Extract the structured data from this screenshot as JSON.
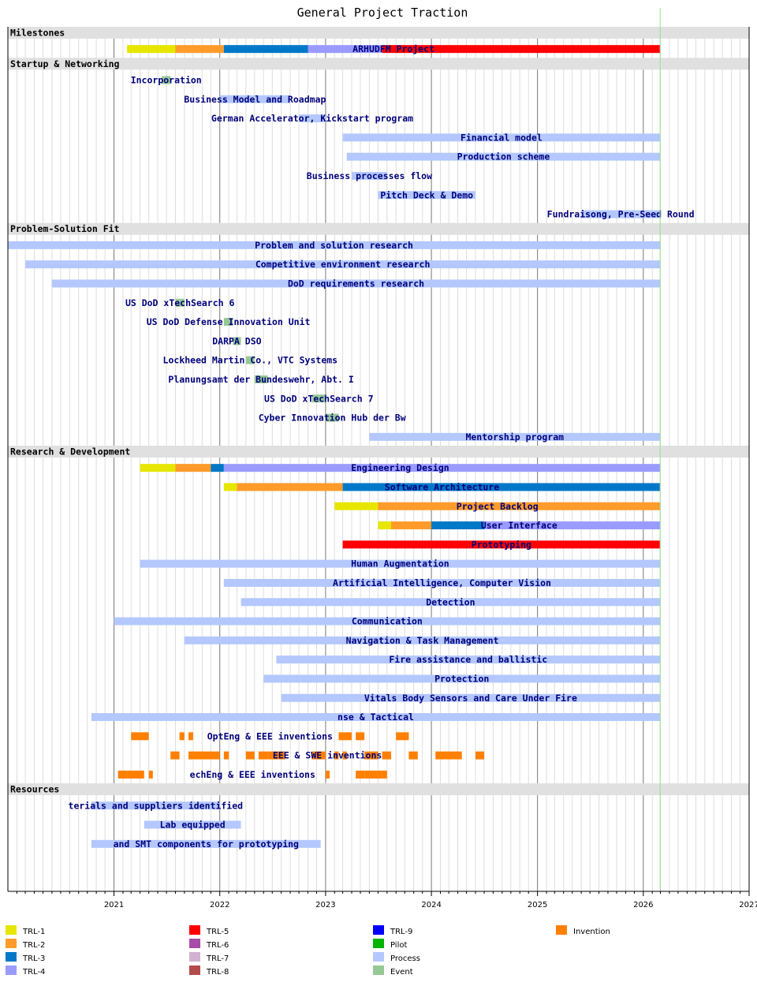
{
  "chart_data": {
    "type": "gantt",
    "title": "General Project Traction",
    "x_axis": {
      "range": [
        "2020-01-01",
        "2027-01-01"
      ],
      "ticks": [
        "2021",
        "2022",
        "2023",
        "2024",
        "2025",
        "2026",
        "2027"
      ],
      "minor_gridlines": "monthly",
      "today_marker": "2026-02-28"
    },
    "colors": {
      "TRL-1": "#e6e600",
      "TRL-2": "#ff9b2a",
      "TRL-3": "#0078c8",
      "TRL-4": "#9b9bff",
      "TRL-5": "#ff0000",
      "TRL-6": "#a64ca6",
      "TRL-7": "#d2b2d2",
      "TRL-8": "#b24c4c",
      "TRL-9": "#0000ff",
      "Pilot": "#00b400",
      "Process": "#b4c8ff",
      "Event": "#96c896",
      "Invention": "#ff8000"
    },
    "legend": [
      "TRL-1",
      "TRL-2",
      "TRL-3",
      "TRL-4",
      "TRL-5",
      "TRL-6",
      "TRL-7",
      "TRL-8",
      "TRL-9",
      "Pilot",
      "Process",
      "Event",
      "Invention"
    ],
    "sections": [
      {
        "name": "Milestones",
        "tasks": [
          {
            "label": "ARHUDFM Project",
            "bars": [
              {
                "start": "2021-02-15",
                "end": "2021-08-01",
                "cat": "TRL-1"
              },
              {
                "start": "2021-08-01",
                "end": "2022-01-15",
                "cat": "TRL-2"
              },
              {
                "start": "2022-01-15",
                "end": "2022-11-01",
                "cat": "TRL-3"
              },
              {
                "start": "2022-11-01",
                "end": "2023-07-15",
                "cat": "TRL-4"
              },
              {
                "start": "2023-07-15",
                "end": "2026-02-28",
                "cat": "TRL-5"
              }
            ]
          }
        ]
      },
      {
        "name": "Startup & Networking",
        "tasks": [
          {
            "label": "Incorporation",
            "bars": [
              {
                "start": "2021-06-15",
                "end": "2021-07-15",
                "cat": "Event"
              }
            ]
          },
          {
            "label": "Business Model and Roadmap",
            "bars": [
              {
                "start": "2022-01-01",
                "end": "2022-09-01",
                "cat": "Process"
              }
            ]
          },
          {
            "label": "German Accelerator, Kickstart program",
            "bars": [
              {
                "start": "2022-10-01",
                "end": "2023-01-01",
                "cat": "Process"
              }
            ]
          },
          {
            "label": "Financial model",
            "bars": [
              {
                "start": "2023-03-01",
                "end": "2026-02-28",
                "cat": "Process"
              }
            ]
          },
          {
            "label": "Production scheme",
            "bars": [
              {
                "start": "2023-03-15",
                "end": "2026-02-28",
                "cat": "Process"
              }
            ]
          },
          {
            "label": "Business processes flow",
            "bars": [
              {
                "start": "2023-04-01",
                "end": "2023-08-01",
                "cat": "Process"
              }
            ]
          },
          {
            "label": "Pitch Deck & Demo",
            "bars": [
              {
                "start": "2023-07-01",
                "end": "2024-06-01",
                "cat": "Process"
              }
            ]
          },
          {
            "label": "Fundraisong, Pre-Seed Round",
            "bars": [
              {
                "start": "2025-06-01",
                "end": "2026-02-28",
                "cat": "Process"
              }
            ]
          }
        ]
      },
      {
        "name": "Problem-Solution Fit",
        "tasks": [
          {
            "label": "Problem and solution research",
            "bars": [
              {
                "start": "2020-01-01",
                "end": "2026-02-28",
                "cat": "Process"
              }
            ]
          },
          {
            "label": "Competitive environment research",
            "bars": [
              {
                "start": "2020-03-01",
                "end": "2026-02-28",
                "cat": "Process"
              }
            ]
          },
          {
            "label": "DoD requirements research",
            "bars": [
              {
                "start": "2020-06-01",
                "end": "2026-02-28",
                "cat": "Process"
              }
            ]
          },
          {
            "label": "US DoD xTechSearch 6",
            "bars": [
              {
                "start": "2021-08-01",
                "end": "2021-09-01",
                "cat": "Event"
              }
            ]
          },
          {
            "label": "US DoD Defense Innovation Unit",
            "bars": [
              {
                "start": "2022-01-15",
                "end": "2022-02-15",
                "cat": "Event"
              }
            ]
          },
          {
            "label": "DARPA DSO",
            "bars": [
              {
                "start": "2022-02-15",
                "end": "2022-03-15",
                "cat": "Event"
              }
            ]
          },
          {
            "label": "Lockheed Martin Co., VTC Systems",
            "bars": [
              {
                "start": "2022-04-01",
                "end": "2022-05-01",
                "cat": "Event"
              }
            ]
          },
          {
            "label": "Planungsamt der Bundeswehr, Abt. I",
            "bars": [
              {
                "start": "2022-05-01",
                "end": "2022-06-15",
                "cat": "Event"
              }
            ]
          },
          {
            "label": "US DoD xTechSearch 7",
            "bars": [
              {
                "start": "2022-11-15",
                "end": "2023-01-01",
                "cat": "Event"
              }
            ]
          },
          {
            "label": "Cyber Innovation Hub der Bw",
            "bars": [
              {
                "start": "2023-01-01",
                "end": "2023-02-15",
                "cat": "Event"
              }
            ]
          },
          {
            "label": "Mentorship program",
            "bars": [
              {
                "start": "2023-06-01",
                "end": "2026-02-28",
                "cat": "Process"
              }
            ]
          }
        ]
      },
      {
        "name": "Research & Development",
        "tasks": [
          {
            "label": "Engineering Design",
            "bars": [
              {
                "start": "2021-04-01",
                "end": "2021-08-01",
                "cat": "TRL-1"
              },
              {
                "start": "2021-08-01",
                "end": "2021-12-01",
                "cat": "TRL-2"
              },
              {
                "start": "2021-12-01",
                "end": "2022-01-15",
                "cat": "TRL-3"
              },
              {
                "start": "2022-01-15",
                "end": "2026-02-28",
                "cat": "TRL-4"
              }
            ]
          },
          {
            "label": "Software Architecture",
            "bars": [
              {
                "start": "2022-01-15",
                "end": "2022-03-01",
                "cat": "TRL-1"
              },
              {
                "start": "2022-03-01",
                "end": "2023-03-01",
                "cat": "TRL-2"
              },
              {
                "start": "2023-03-01",
                "end": "2026-02-28",
                "cat": "TRL-3"
              }
            ]
          },
          {
            "label": "Project Backlog",
            "bars": [
              {
                "start": "2023-02-01",
                "end": "2023-07-01",
                "cat": "TRL-1"
              },
              {
                "start": "2023-07-01",
                "end": "2026-02-28",
                "cat": "TRL-2"
              }
            ]
          },
          {
            "label": "User Interface",
            "bars": [
              {
                "start": "2023-07-01",
                "end": "2023-08-15",
                "cat": "TRL-1"
              },
              {
                "start": "2023-08-15",
                "end": "2024-01-01",
                "cat": "TRL-2"
              },
              {
                "start": "2024-01-01",
                "end": "2024-07-01",
                "cat": "TRL-3"
              },
              {
                "start": "2024-07-01",
                "end": "2026-02-28",
                "cat": "TRL-4"
              }
            ]
          },
          {
            "label": "Prototyping",
            "bars": [
              {
                "start": "2023-03-01",
                "end": "2026-02-28",
                "cat": "TRL-5"
              }
            ]
          },
          {
            "label": "Human Augmentation",
            "bars": [
              {
                "start": "2021-04-01",
                "end": "2026-02-28",
                "cat": "Process"
              }
            ]
          },
          {
            "label": "Artificial Intelligence, Computer Vision",
            "bars": [
              {
                "start": "2022-01-15",
                "end": "2026-02-28",
                "cat": "Process"
              }
            ]
          },
          {
            "label": "Detection",
            "bars": [
              {
                "start": "2022-03-15",
                "end": "2026-02-28",
                "cat": "Process"
              }
            ]
          },
          {
            "label": "Communication",
            "bars": [
              {
                "start": "2021-01-01",
                "end": "2026-02-28",
                "cat": "Process"
              }
            ]
          },
          {
            "label": "Navigation & Task Management",
            "bars": [
              {
                "start": "2021-09-01",
                "end": "2026-02-28",
                "cat": "Process"
              }
            ]
          },
          {
            "label": "Fire assistance and ballistic",
            "bars": [
              {
                "start": "2022-07-15",
                "end": "2026-02-28",
                "cat": "Process"
              }
            ]
          },
          {
            "label": "Protection",
            "bars": [
              {
                "start": "2022-06-01",
                "end": "2026-02-28",
                "cat": "Process"
              }
            ]
          },
          {
            "label": "Vitals Body Sensors and Care Under Fire",
            "bars": [
              {
                "start": "2022-08-01",
                "end": "2026-02-28",
                "cat": "Process"
              }
            ]
          },
          {
            "label": "nse & Tactical",
            "bars": [
              {
                "start": "2020-10-15",
                "end": "2026-02-28",
                "cat": "Process"
              }
            ]
          },
          {
            "label": "OptEng & EEE inventions",
            "bars": [
              {
                "start": "2021-03-01",
                "end": "2021-05-01",
                "cat": "Invention"
              },
              {
                "start": "2021-08-15",
                "end": "2021-09-01",
                "cat": "Invention"
              },
              {
                "start": "2021-09-15",
                "end": "2021-10-01",
                "cat": "Invention"
              },
              {
                "start": "2023-02-15",
                "end": "2023-04-01",
                "cat": "Invention"
              },
              {
                "start": "2023-04-15",
                "end": "2023-05-15",
                "cat": "Invention"
              },
              {
                "start": "2023-09-01",
                "end": "2023-10-15",
                "cat": "Invention"
              }
            ]
          },
          {
            "label": "EEE & SWE inventions",
            "bars": [
              {
                "start": "2021-07-15",
                "end": "2021-08-15",
                "cat": "Invention"
              },
              {
                "start": "2021-09-15",
                "end": "2022-01-01",
                "cat": "Invention"
              },
              {
                "start": "2022-01-15",
                "end": "2022-02-01",
                "cat": "Invention"
              },
              {
                "start": "2022-04-01",
                "end": "2022-05-01",
                "cat": "Invention"
              },
              {
                "start": "2022-05-15",
                "end": "2022-06-15",
                "cat": "Invention"
              },
              {
                "start": "2022-06-15",
                "end": "2022-08-15",
                "cat": "Invention"
              },
              {
                "start": "2022-11-15",
                "end": "2023-01-01",
                "cat": "Invention"
              },
              {
                "start": "2023-02-01",
                "end": "2023-02-15",
                "cat": "Invention"
              },
              {
                "start": "2023-03-01",
                "end": "2023-03-15",
                "cat": "Invention"
              },
              {
                "start": "2023-05-15",
                "end": "2023-07-01",
                "cat": "Invention"
              },
              {
                "start": "2023-07-15",
                "end": "2023-08-15",
                "cat": "Invention"
              },
              {
                "start": "2023-10-15",
                "end": "2023-11-15",
                "cat": "Invention"
              },
              {
                "start": "2024-01-15",
                "end": "2024-04-15",
                "cat": "Invention"
              },
              {
                "start": "2024-06-01",
                "end": "2024-07-01",
                "cat": "Invention"
              }
            ]
          },
          {
            "label": "echEng & EEE inventions",
            "bars": [
              {
                "start": "2021-01-15",
                "end": "2021-02-15",
                "cat": "Invention"
              },
              {
                "start": "2021-02-15",
                "end": "2021-04-15",
                "cat": "Invention"
              },
              {
                "start": "2021-05-01",
                "end": "2021-05-15",
                "cat": "Invention"
              },
              {
                "start": "2023-01-01",
                "end": "2023-01-15",
                "cat": "Invention"
              },
              {
                "start": "2023-04-15",
                "end": "2023-05-15",
                "cat": "Invention"
              },
              {
                "start": "2023-05-15",
                "end": "2023-06-01",
                "cat": "Invention"
              },
              {
                "start": "2023-06-01",
                "end": "2023-07-01",
                "cat": "Invention"
              },
              {
                "start": "2023-07-01",
                "end": "2023-07-15",
                "cat": "Invention"
              },
              {
                "start": "2023-07-15",
                "end": "2023-08-01",
                "cat": "Invention"
              }
            ]
          }
        ]
      },
      {
        "name": "Resources",
        "tasks": [
          {
            "label": "terials and suppliers identified",
            "bars": [
              {
                "start": "2020-10-15",
                "end": "2022-01-01",
                "cat": "Process"
              }
            ]
          },
          {
            "label": "Lab equipped",
            "bars": [
              {
                "start": "2021-04-15",
                "end": "2022-03-15",
                "cat": "Process"
              }
            ]
          },
          {
            "label": "and SMT components for prototyping",
            "bars": [
              {
                "start": "2020-10-15",
                "end": "2022-12-15",
                "cat": "Process"
              }
            ]
          }
        ]
      }
    ]
  }
}
